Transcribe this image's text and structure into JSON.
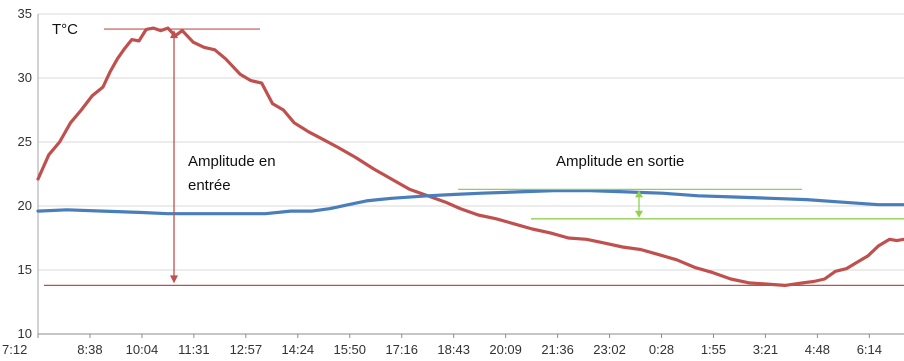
{
  "chart_data": {
    "type": "line",
    "ylabel": "T°C",
    "ylim": [
      10,
      35
    ],
    "y_ticks": [
      10,
      15,
      20,
      25,
      30,
      35
    ],
    "x_tick_labels": [
      "7:12",
      "8:38",
      "10:04",
      "11:31",
      "12:57",
      "14:24",
      "15:50",
      "17:16",
      "18:43",
      "20:09",
      "21:36",
      "23:02",
      "0:28",
      "1:55",
      "3:21",
      "4:48",
      "6:14"
    ],
    "x_range_hours": [
      7.2,
      31.2
    ],
    "grid": "horizontal",
    "series": [
      {
        "color": "#c0504d",
        "x": [
          7.2,
          7.5,
          7.8,
          8.1,
          8.4,
          8.7,
          9.0,
          9.2,
          9.4,
          9.6,
          9.8,
          10.0,
          10.2,
          10.4,
          10.6,
          10.8,
          11.0,
          11.2,
          11.5,
          11.8,
          12.1,
          12.4,
          12.8,
          13.1,
          13.4,
          13.7,
          14.0,
          14.3,
          14.7,
          15.1,
          15.5,
          16.0,
          16.5,
          17.0,
          17.5,
          18.0,
          18.5,
          18.9,
          19.4,
          19.9,
          20.4,
          20.9,
          21.4,
          21.9,
          22.4,
          22.9,
          23.4,
          23.9,
          24.4,
          24.9,
          25.4,
          25.9,
          26.4,
          26.9,
          27.4,
          27.9,
          28.4,
          28.7,
          29.0,
          29.3,
          29.6,
          29.9,
          30.2,
          30.5,
          30.8,
          31.0,
          31.2
        ],
        "values": [
          22.1,
          24.0,
          25.0,
          26.5,
          27.5,
          28.6,
          29.3,
          30.5,
          31.5,
          32.3,
          33.0,
          32.9,
          33.8,
          33.9,
          33.7,
          33.9,
          33.3,
          33.7,
          32.8,
          32.4,
          32.2,
          31.5,
          30.3,
          29.8,
          29.6,
          28.0,
          27.5,
          26.5,
          25.8,
          25.2,
          24.6,
          23.8,
          22.9,
          22.1,
          21.3,
          20.8,
          20.3,
          19.8,
          19.3,
          19.0,
          18.6,
          18.2,
          17.9,
          17.5,
          17.4,
          17.1,
          16.8,
          16.6,
          16.2,
          15.8,
          15.2,
          14.8,
          14.3,
          14.0,
          13.9,
          13.8,
          14.0,
          14.1,
          14.3,
          14.9,
          15.1,
          15.6,
          16.1,
          16.9,
          17.4,
          17.3,
          17.4
        ]
      },
      {
        "color": "#4a7ebb",
        "x": [
          7.2,
          8.0,
          9.0,
          10.0,
          10.8,
          11.5,
          12.5,
          13.5,
          14.2,
          14.8,
          15.3,
          15.8,
          16.3,
          17.0,
          18.0,
          18.7,
          19.5,
          20.5,
          21.5,
          22.5,
          23.5,
          24.5,
          25.5,
          26.5,
          27.5,
          28.5,
          29.5,
          30.5,
          31.2
        ],
        "values": [
          19.6,
          19.7,
          19.6,
          19.5,
          19.4,
          19.4,
          19.4,
          19.4,
          19.6,
          19.6,
          19.8,
          20.1,
          20.4,
          20.6,
          20.8,
          20.9,
          21.0,
          21.1,
          21.2,
          21.2,
          21.1,
          21.0,
          20.8,
          20.7,
          20.6,
          20.5,
          20.3,
          20.1,
          20.1
        ]
      }
    ],
    "annotations": {
      "ylabel_text": "T°C",
      "entry_label_line1": "Amplitude en",
      "entry_label_line2": "entrée",
      "exit_label": "Amplitude en sortie"
    }
  }
}
